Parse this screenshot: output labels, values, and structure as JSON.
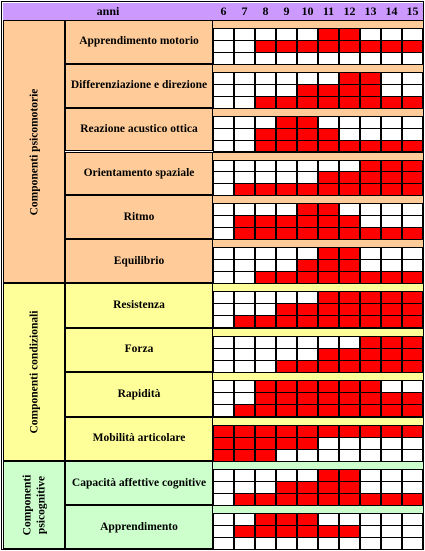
{
  "header": {
    "label": "anni",
    "ages": [
      "6",
      "7",
      "8",
      "9",
      "10",
      "11",
      "12",
      "13",
      "14",
      "15"
    ]
  },
  "colors": {
    "header": "#cc99ff",
    "filled": "#ff0000",
    "empty": "#ffffff",
    "psicomotorie": "#ffcc99",
    "condizionali": "#ffff99",
    "psicognitive": "#ccffcc"
  },
  "groups": [
    {
      "name": "Componenti psicomotorie",
      "color_key": "psicomotorie",
      "activities": [
        {
          "label": "Apprendimento motorio",
          "rows": [
            [
              0,
              0,
              0,
              0,
              0,
              1,
              1,
              0,
              0,
              0
            ],
            [
              0,
              0,
              1,
              1,
              1,
              1,
              1,
              1,
              1,
              1
            ],
            [
              0,
              0,
              0,
              0,
              0,
              0,
              0,
              0,
              0,
              0
            ]
          ]
        },
        {
          "label": "Differenziazione e direzione",
          "rows": [
            [
              0,
              0,
              0,
              0,
              0,
              0,
              1,
              1,
              0,
              0
            ],
            [
              0,
              0,
              0,
              0,
              1,
              1,
              1,
              1,
              0,
              0
            ],
            [
              0,
              0,
              1,
              1,
              1,
              1,
              1,
              1,
              1,
              1
            ]
          ]
        },
        {
          "label": "Reazione acustico ottica",
          "rows": [
            [
              0,
              0,
              0,
              1,
              1,
              0,
              0,
              0,
              0,
              0
            ],
            [
              0,
              0,
              1,
              1,
              1,
              1,
              0,
              0,
              0,
              0
            ],
            [
              0,
              0,
              1,
              1,
              1,
              1,
              1,
              1,
              1,
              1
            ]
          ]
        },
        {
          "label": "Orientamento spaziale",
          "rows": [
            [
              0,
              0,
              0,
              0,
              0,
              0,
              0,
              1,
              1,
              1
            ],
            [
              0,
              0,
              0,
              0,
              0,
              1,
              1,
              1,
              1,
              1
            ],
            [
              0,
              1,
              1,
              1,
              1,
              1,
              1,
              1,
              1,
              1
            ]
          ]
        },
        {
          "label": "Ritmo",
          "rows": [
            [
              0,
              0,
              0,
              0,
              1,
              1,
              0,
              0,
              0,
              0
            ],
            [
              0,
              1,
              1,
              1,
              1,
              1,
              1,
              0,
              0,
              0
            ],
            [
              0,
              1,
              1,
              1,
              1,
              1,
              1,
              1,
              1,
              1
            ]
          ]
        },
        {
          "label": "Equilibrio",
          "rows": [
            [
              0,
              0,
              0,
              0,
              0,
              1,
              1,
              0,
              0,
              0
            ],
            [
              0,
              0,
              0,
              0,
              1,
              1,
              1,
              0,
              0,
              0
            ],
            [
              0,
              0,
              1,
              1,
              1,
              1,
              1,
              1,
              1,
              1
            ]
          ]
        }
      ]
    },
    {
      "name": "Componenti condizionali",
      "color_key": "condizionali",
      "activities": [
        {
          "label": "Resistenza",
          "rows": [
            [
              0,
              0,
              0,
              0,
              0,
              1,
              1,
              1,
              1,
              1
            ],
            [
              0,
              0,
              0,
              1,
              1,
              1,
              1,
              1,
              1,
              1
            ],
            [
              0,
              1,
              1,
              1,
              1,
              1,
              1,
              1,
              1,
              1
            ]
          ]
        },
        {
          "label": "Forza",
          "rows": [
            [
              0,
              0,
              0,
              0,
              0,
              0,
              0,
              1,
              1,
              1
            ],
            [
              0,
              0,
              0,
              0,
              0,
              1,
              1,
              1,
              1,
              1
            ],
            [
              0,
              0,
              0,
              1,
              1,
              1,
              1,
              1,
              1,
              1
            ]
          ]
        },
        {
          "label": "Rapidità",
          "rows": [
            [
              0,
              0,
              1,
              1,
              1,
              1,
              1,
              1,
              0,
              0
            ],
            [
              0,
              0,
              1,
              1,
              1,
              1,
              1,
              1,
              1,
              1
            ],
            [
              0,
              1,
              1,
              1,
              1,
              1,
              1,
              1,
              1,
              1
            ]
          ]
        },
        {
          "label": "Mobilità articolare",
          "rows": [
            [
              1,
              1,
              1,
              1,
              1,
              1,
              1,
              1,
              1,
              1
            ],
            [
              1,
              1,
              1,
              1,
              1,
              0,
              0,
              0,
              0,
              0
            ],
            [
              1,
              1,
              1,
              0,
              0,
              0,
              0,
              0,
              0,
              0
            ]
          ]
        }
      ]
    },
    {
      "name": "Componenti psicognitive",
      "color_key": "psicognitive",
      "activities": [
        {
          "label": "Capacità affettive cognitive",
          "rows": [
            [
              0,
              0,
              0,
              0,
              0,
              1,
              1,
              0,
              0,
              0
            ],
            [
              0,
              0,
              0,
              1,
              1,
              1,
              1,
              0,
              0,
              0
            ],
            [
              0,
              1,
              1,
              1,
              1,
              1,
              1,
              1,
              1,
              1
            ]
          ]
        },
        {
          "label": "Apprendimento",
          "rows": [
            [
              0,
              0,
              1,
              1,
              1,
              0,
              0,
              0,
              0,
              0
            ],
            [
              0,
              1,
              1,
              1,
              1,
              1,
              1,
              0,
              0,
              0
            ],
            [
              0,
              0,
              0,
              0,
              0,
              0,
              0,
              0,
              0,
              0
            ]
          ]
        }
      ]
    }
  ]
}
